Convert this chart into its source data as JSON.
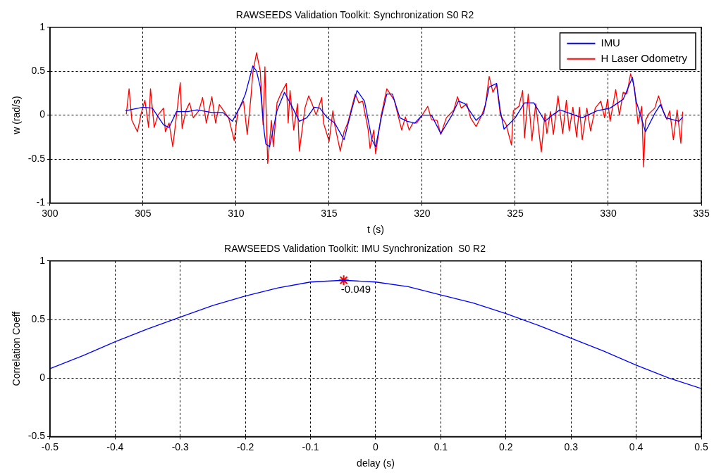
{
  "chart_data": [
    {
      "type": "line",
      "title": "RAWSEEDS Validation Toolkit: Synchronization S0 R2",
      "xlabel": "t (s)",
      "ylabel": "w (rad/s)",
      "xlim": [
        300,
        335
      ],
      "xticks": [
        300,
        305,
        310,
        315,
        320,
        325,
        330,
        335
      ],
      "ylim": [
        -1,
        1
      ],
      "yticks": [
        -1,
        -0.5,
        0,
        0.5,
        1
      ],
      "grid": true,
      "legend": "top right",
      "marker": "none",
      "series": [
        {
          "name": "IMU",
          "color": "#0000ff",
          "x": [
            304.05,
            305,
            305.5,
            306.1,
            306.4,
            306.8,
            307.4,
            307.9,
            308.7,
            309.3,
            309.8,
            310.2,
            310.5,
            310.9,
            311.1,
            311.3,
            311.5,
            311.6,
            311.8,
            312.2,
            312.6,
            313,
            313.4,
            313.8,
            314.2,
            314.5,
            314.9,
            315.3,
            315.8,
            316.2,
            316.5,
            316.9,
            317.3,
            317.5,
            317.8,
            318.1,
            318.4,
            318.8,
            319.2,
            319.6,
            320,
            320.5,
            321,
            321.6,
            321.95,
            322.3,
            322.9,
            323.3,
            323.6,
            324,
            324.2,
            324.4,
            325,
            325.5,
            326,
            326.6,
            327,
            327.4,
            328.6,
            329.4,
            330.1,
            330.8,
            331.3,
            331.5,
            332,
            332.5,
            332.8,
            333.1,
            333.8,
            334
          ],
          "values": [
            0.05,
            0.09,
            0.08,
            -0.11,
            -0.14,
            0.04,
            0.04,
            0.06,
            0.03,
            0.03,
            -0.07,
            0.09,
            0.24,
            0.56,
            0.5,
            0.32,
            -0.17,
            -0.33,
            -0.36,
            0.05,
            0.26,
            0.1,
            -0.07,
            -0.03,
            0.09,
            0.08,
            -0.03,
            -0.09,
            -0.28,
            0.05,
            0.28,
            0.16,
            -0.28,
            -0.36,
            -0.03,
            0.24,
            0.24,
            -0.03,
            -0.07,
            -0.09,
            0,
            0,
            -0.21,
            0,
            0.16,
            0.13,
            -0.06,
            0.02,
            0.32,
            0.36,
            0.05,
            -0.16,
            -0.03,
            0.14,
            0.14,
            -0.07,
            0,
            0.06,
            -0.03,
            0.05,
            0.08,
            0.18,
            0.43,
            0.16,
            -0.19,
            0.02,
            0.12,
            -0.03,
            -0.07,
            -0.02
          ]
        },
        {
          "name": "H Laser Odometry",
          "color": "#ff0000",
          "x": [
            304.1,
            304.25,
            304.4,
            304.7,
            304.9,
            305.1,
            305.3,
            305.4,
            305.6,
            305.8,
            306.1,
            306.2,
            306.4,
            306.6,
            306.8,
            307,
            307.1,
            307.3,
            307.5,
            307.7,
            308,
            308.2,
            308.4,
            308.7,
            308.9,
            309.1,
            309.3,
            309.6,
            309.9,
            310.1,
            310.4,
            310.6,
            310.8,
            310.9,
            311.1,
            311.3,
            311.45,
            311.55,
            311.7,
            311.9,
            312,
            312.2,
            312.4,
            312.7,
            312.8,
            312.9,
            313.1,
            313.3,
            313.4,
            313.7,
            313.9,
            314.1,
            314.3,
            314.6,
            314.7,
            315,
            315.2,
            315.3,
            315.6,
            315.8,
            316,
            316.4,
            316.6,
            316.8,
            317.1,
            317.2,
            317.4,
            317.5,
            317.8,
            318.1,
            318.5,
            318.9,
            319.1,
            319.3,
            319.5,
            319.7,
            320,
            320.3,
            320.5,
            320.8,
            321,
            321.3,
            321.7,
            321.9,
            322.1,
            322.4,
            322.6,
            322.9,
            323.2,
            323.4,
            323.6,
            323.8,
            324,
            324.2,
            324.5,
            324.8,
            324.9,
            325.2,
            325.4,
            325.5,
            325.7,
            325.9,
            326.1,
            326.4,
            326.6,
            326.7,
            326.9,
            327.05,
            327.3,
            327.55,
            327.75,
            327.9,
            328.1,
            328.3,
            328.45,
            328.6,
            328.85,
            329.05,
            329.3,
            329.6,
            329.8,
            329.96,
            330.1,
            330.4,
            330.6,
            330.8,
            331,
            331.2,
            331.4,
            331.6,
            331.8,
            331.9,
            332,
            332.2,
            332.5,
            332.7,
            332.95,
            333.15,
            333.3,
            333.5,
            333.7,
            333.9,
            334
          ],
          "values": [
            0.01,
            0.3,
            -0.06,
            -0.19,
            0.02,
            0.17,
            -0.14,
            0.3,
            -0.14,
            0,
            0.08,
            -0.19,
            -0.09,
            -0.36,
            0,
            0.37,
            -0.15,
            0.05,
            0.14,
            -0.03,
            0.05,
            0.2,
            -0.09,
            0.21,
            -0.09,
            0.12,
            0.06,
            -0.03,
            -0.29,
            0.05,
            0.16,
            -0.22,
            0.21,
            0.48,
            0.71,
            0.5,
            -0.11,
            0.55,
            -0.55,
            -0.06,
            -0.36,
            0.14,
            0.24,
            0.36,
            -0.09,
            0.28,
            -0.17,
            0.13,
            -0.41,
            0.08,
            0.22,
            0.12,
            0,
            0.2,
            -0.09,
            -0.3,
            0.05,
            -0.11,
            -0.41,
            -0.19,
            -0.09,
            0.24,
            0.14,
            0.16,
            -0.17,
            -0.38,
            -0.17,
            -0.44,
            0,
            0.3,
            0.17,
            -0.17,
            -0.02,
            -0.17,
            -0.09,
            -0.09,
            0,
            0.1,
            -0.05,
            -0.06,
            -0.22,
            -0.03,
            0.06,
            0.21,
            0.08,
            0.13,
            -0.03,
            -0.13,
            0,
            0.12,
            0.44,
            0.26,
            0.35,
            0,
            -0.1,
            -0.34,
            0.05,
            0.1,
            0.28,
            -0.26,
            0.24,
            -0.29,
            0.13,
            -0.42,
            0.02,
            -0.21,
            0.04,
            -0.22,
            0.22,
            -0.21,
            0.17,
            -0.18,
            0.09,
            -0.25,
            0.09,
            -0.28,
            0.08,
            -0.18,
            0.08,
            0.16,
            -0.03,
            0.18,
            -0.07,
            0.29,
            0,
            0.26,
            0.24,
            0.47,
            0.32,
            -0.1,
            0.1,
            -0.59,
            -0.06,
            0.02,
            0.08,
            0.22,
            0.05,
            -0.05,
            0.05,
            -0.28,
            0.06,
            -0.32,
            0.04
          ]
        }
      ]
    },
    {
      "type": "line",
      "title": "RAWSEEDS Validation Toolkit: IMU Synchronization  S0 R2",
      "xlabel": "delay (s)",
      "ylabel": "Correlation Coeff",
      "xlim": [
        -0.5,
        0.5
      ],
      "xticks": [
        -0.5,
        -0.4,
        -0.3,
        -0.2,
        -0.1,
        0,
        0.1,
        0.2,
        0.3,
        0.4,
        0.5
      ],
      "ylim": [
        -0.5,
        1
      ],
      "yticks": [
        -0.5,
        0,
        0.5,
        1
      ],
      "grid": true,
      "marker": "none",
      "series": [
        {
          "color": "#0000ff",
          "x": [
            -0.5,
            -0.45,
            -0.4,
            -0.35,
            -0.3,
            -0.25,
            -0.2,
            -0.15,
            -0.1,
            -0.049,
            0,
            0.05,
            0.1,
            0.15,
            0.2,
            0.25,
            0.3,
            0.35,
            0.4,
            0.45,
            0.5
          ],
          "values": [
            0.08,
            0.19,
            0.31,
            0.42,
            0.52,
            0.62,
            0.7,
            0.77,
            0.82,
            0.835,
            0.82,
            0.78,
            0.71,
            0.64,
            0.55,
            0.45,
            0.34,
            0.23,
            0.11,
            0,
            -0.09
          ]
        },
        {
          "type": "scatter",
          "marker": "cross",
          "color": "#ff0000",
          "x": [
            -0.049
          ],
          "values": [
            0.835
          ]
        }
      ],
      "annotations": [
        {
          "text": "-0.049",
          "x": -0.049,
          "y": 0.835
        }
      ]
    }
  ]
}
